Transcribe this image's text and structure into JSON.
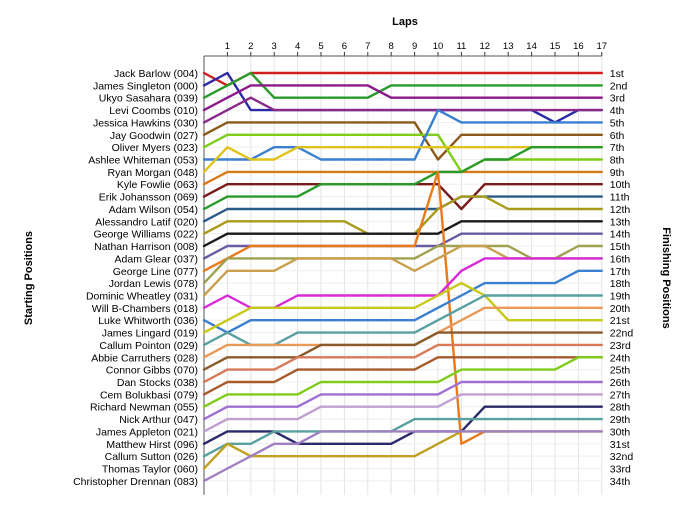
{
  "chart_data": {
    "type": "line",
    "title": "",
    "xlabel": "Laps",
    "ylabel_left": "Starting Positions",
    "ylabel_right": "Finishing Positions",
    "x_ticks": [
      1,
      2,
      3,
      4,
      5,
      6,
      7,
      8,
      9,
      10,
      11,
      12,
      13,
      14,
      15,
      16,
      17
    ],
    "xlim": [
      0,
      17
    ],
    "grid": true,
    "starting_labels": [
      "Jack Barlow (004)",
      "James Singleton (000)",
      "Ukyo Sasahara (039)",
      "Levi Coombs (010)",
      "Jessica Hawkins (030)",
      "Jay Goodwin (027)",
      "Oliver Myers (023)",
      "Ashlee Whiteman (053)",
      "Ryan Morgan (048)",
      "Kyle Fowlie (063)",
      "Erik Johansson (069)",
      "Adam Wilson (054)",
      "Alessandro Latif (020)",
      "George Williams (022)",
      "Nathan Harrison (008)",
      "Adam Glear (037)",
      "George Line (077)",
      "Jordan Lewis (078)",
      "Dominic Wheatley (031)",
      "Will B-Chambers (018)",
      "Luke Whitworth (036)",
      "James Lingard (019)",
      "Callum Pointon (029)",
      "Abbie Carruthers (028)",
      "Connor Gibbs (070)",
      "Dan Stocks (038)",
      "Cem Bolukbasi (079)",
      "Richard Newman (055)",
      "Nick Arthur (047)",
      "James Appleton (021)",
      "Matthew Hirst (096)",
      "Callum Sutton (026)",
      "Thomas Taylor (060)",
      "Christopher Drennan (083)"
    ],
    "finishing_labels": [
      "1st",
      "2nd",
      "3rd",
      "4th",
      "5th",
      "6th",
      "7th",
      "8th",
      "9th",
      "10th",
      "11th",
      "12th",
      "13th",
      "14th",
      "15th",
      "16th",
      "17th",
      "18th",
      "19th",
      "20th",
      "21st",
      "22nd",
      "23rd",
      "24th",
      "25th",
      "26th",
      "27th",
      "28th",
      "29th",
      "30th",
      "31st",
      "32nd",
      "33rd",
      "34th"
    ],
    "series": [
      {
        "color": "#d11f1f",
        "positions": [
          1,
          2,
          1,
          1,
          1,
          1,
          1,
          1,
          1,
          1,
          1,
          1,
          1,
          1,
          1,
          1,
          1,
          1
        ]
      },
      {
        "color": "#2a2aa8",
        "positions": [
          2,
          1,
          4,
          4,
          4,
          4,
          4,
          4,
          4,
          4,
          4,
          4,
          4,
          4,
          4,
          5,
          4,
          4
        ]
      },
      {
        "color": "#2a9a2a",
        "positions": [
          3,
          2,
          1,
          3,
          3,
          3,
          3,
          3,
          2,
          2,
          2,
          2,
          2,
          2,
          2,
          2,
          2,
          2
        ]
      },
      {
        "color": "#8b1a8b",
        "positions": [
          4,
          3,
          2,
          2,
          2,
          2,
          2,
          2,
          3,
          3,
          3,
          3,
          3,
          3,
          3,
          3,
          3,
          3
        ]
      },
      {
        "color": "#8a2a8a",
        "positions": [
          5,
          4,
          3,
          4,
          4,
          4,
          4,
          4,
          4,
          4,
          4,
          4,
          4,
          4,
          4,
          4,
          4,
          4
        ]
      },
      {
        "color": "#8b5a1a",
        "positions": [
          6,
          5,
          5,
          5,
          5,
          5,
          5,
          5,
          5,
          5,
          8,
          6,
          6,
          6,
          6,
          6,
          6,
          6
        ]
      },
      {
        "color": "#7fcc1a",
        "positions": [
          7,
          6,
          6,
          6,
          6,
          6,
          6,
          6,
          6,
          6,
          6,
          9,
          8,
          8,
          8,
          8,
          8,
          8
        ]
      },
      {
        "color": "#3a7fd0",
        "positions": [
          8,
          8,
          8,
          7,
          7,
          8,
          8,
          8,
          8,
          8,
          4,
          5,
          5,
          5,
          5,
          5,
          5,
          5
        ]
      },
      {
        "color": "#e0c21a",
        "positions": [
          9,
          7,
          8,
          8,
          7,
          7,
          7,
          7,
          7,
          7,
          7,
          7,
          7,
          7,
          7,
          7,
          7,
          7
        ]
      },
      {
        "color": "#d97a1a",
        "positions": [
          10,
          9,
          9,
          9,
          9,
          9,
          9,
          9,
          9,
          9,
          9,
          9,
          9,
          9,
          9,
          9,
          9,
          9
        ]
      },
      {
        "color": "#7a1a1a",
        "positions": [
          11,
          10,
          10,
          10,
          10,
          10,
          10,
          10,
          10,
          10,
          10,
          12,
          10,
          10,
          10,
          10,
          10,
          10
        ]
      },
      {
        "color": "#2a9a2a",
        "positions": [
          12,
          11,
          11,
          11,
          11,
          10,
          10,
          10,
          10,
          10,
          9,
          9,
          8,
          8,
          7,
          7,
          7,
          7
        ]
      },
      {
        "color": "#2a5a8a",
        "positions": [
          13,
          12,
          12,
          12,
          12,
          12,
          12,
          12,
          12,
          12,
          12,
          11,
          11,
          11,
          11,
          11,
          11,
          11
        ]
      },
      {
        "color": "#a89a1a",
        "positions": [
          14,
          13,
          13,
          13,
          13,
          13,
          13,
          14,
          14,
          14,
          12,
          11,
          11,
          12,
          12,
          12,
          12,
          12
        ]
      },
      {
        "color": "#1a1a1a",
        "positions": [
          15,
          14,
          14,
          14,
          14,
          14,
          14,
          14,
          14,
          14,
          14,
          13,
          13,
          13,
          13,
          13,
          13,
          13
        ]
      },
      {
        "color": "#6a5aa0",
        "positions": [
          16,
          15,
          15,
          15,
          15,
          15,
          15,
          15,
          15,
          15,
          15,
          14,
          14,
          14,
          14,
          14,
          14,
          14
        ]
      },
      {
        "color": "#e87a1a",
        "positions": [
          17,
          16,
          15,
          15,
          15,
          15,
          15,
          15,
          15,
          15,
          9,
          31,
          30,
          30,
          null,
          null,
          null,
          null
        ]
      },
      {
        "color": "#a0a050",
        "positions": [
          18,
          16,
          16,
          16,
          16,
          16,
          16,
          16,
          16,
          16,
          15,
          15,
          15,
          15,
          16,
          16,
          15,
          15
        ]
      },
      {
        "color": "#c8a050",
        "positions": [
          19,
          17,
          17,
          17,
          16,
          16,
          16,
          16,
          16,
          17,
          16,
          15,
          15,
          16,
          16,
          16,
          16,
          16
        ]
      },
      {
        "color": "#d82ad8",
        "positions": [
          20,
          19,
          20,
          20,
          19,
          19,
          19,
          19,
          19,
          19,
          19,
          17,
          16,
          16,
          16,
          16,
          16,
          16
        ]
      },
      {
        "color": "#3a7fd0",
        "positions": [
          21,
          22,
          21,
          21,
          21,
          21,
          21,
          21,
          21,
          21,
          20,
          19,
          18,
          18,
          18,
          18,
          17,
          17
        ]
      },
      {
        "color": "#c8c81a",
        "positions": [
          22,
          21,
          20,
          20,
          20,
          20,
          20,
          20,
          20,
          20,
          19,
          18,
          19,
          21,
          21,
          21,
          21,
          21
        ]
      },
      {
        "color": "#5aa0a0",
        "positions": [
          23,
          22,
          23,
          23,
          22,
          22,
          22,
          22,
          22,
          22,
          21,
          20,
          19,
          19,
          19,
          19,
          19,
          19
        ]
      },
      {
        "color": "#e89a5a",
        "positions": [
          24,
          23,
          23,
          23,
          23,
          23,
          23,
          23,
          23,
          23,
          22,
          21,
          20,
          20,
          20,
          20,
          20,
          20
        ]
      },
      {
        "color": "#8a5a2a",
        "positions": [
          25,
          24,
          24,
          24,
          24,
          23,
          23,
          23,
          23,
          23,
          22,
          22,
          22,
          22,
          22,
          22,
          22,
          22
        ]
      },
      {
        "color": "#d87a5a",
        "positions": [
          26,
          25,
          25,
          25,
          24,
          24,
          24,
          24,
          24,
          24,
          23,
          23,
          23,
          23,
          23,
          23,
          23,
          23
        ]
      },
      {
        "color": "#a85a2a",
        "positions": [
          27,
          26,
          26,
          26,
          25,
          25,
          25,
          25,
          25,
          25,
          24,
          24,
          24,
          24,
          24,
          24,
          24,
          24
        ]
      },
      {
        "color": "#7fcc1a",
        "positions": [
          28,
          27,
          27,
          27,
          27,
          26,
          26,
          26,
          26,
          26,
          26,
          25,
          25,
          25,
          25,
          25,
          24,
          24
        ]
      },
      {
        "color": "#a070d0",
        "positions": [
          29,
          28,
          28,
          28,
          28,
          27,
          27,
          27,
          27,
          27,
          27,
          26,
          26,
          26,
          26,
          26,
          26,
          26
        ]
      },
      {
        "color": "#c0a0d0",
        "positions": [
          30,
          29,
          29,
          29,
          29,
          28,
          28,
          28,
          28,
          28,
          28,
          27,
          27,
          27,
          27,
          27,
          27,
          27
        ]
      },
      {
        "color": "#2a2a6a",
        "positions": [
          31,
          30,
          30,
          30,
          31,
          31,
          31,
          31,
          31,
          30,
          30,
          30,
          28,
          28,
          28,
          28,
          28,
          28
        ]
      },
      {
        "color": "#5aa0a0",
        "positions": [
          32,
          31,
          31,
          30,
          30,
          30,
          30,
          30,
          30,
          29,
          29,
          29,
          29,
          29,
          29,
          29,
          29,
          29
        ]
      },
      {
        "color": "#c0a020",
        "positions": [
          33,
          31,
          32,
          32,
          32,
          32,
          32,
          32,
          32,
          32,
          31,
          30,
          30,
          30,
          30,
          30,
          30,
          30
        ]
      },
      {
        "color": "#a080c0",
        "positions": [
          34,
          33,
          32,
          31,
          31,
          30,
          30,
          30,
          30,
          30,
          30,
          30,
          30,
          30,
          30,
          30,
          30,
          30
        ]
      }
    ]
  }
}
